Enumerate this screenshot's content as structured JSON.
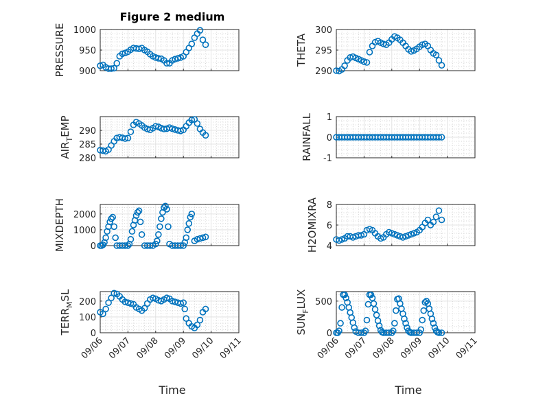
{
  "figure": {
    "title": "Figure 2 medium",
    "xlabel": "Time"
  },
  "chart_data": [
    {
      "type": "scatter",
      "title": "Figure 2 medium",
      "ylabel": "PRESSURE",
      "ylabel_sub": "",
      "ylabel_tail": "",
      "ylim": [
        900,
        1000
      ],
      "yticks": [
        900,
        950,
        1000
      ],
      "xlim": [
        "09/06",
        "09/11"
      ],
      "xticks": [
        "09/06",
        "09/07",
        "09/08",
        "09/09",
        "09/10",
        "09/11"
      ],
      "xlabel": "",
      "color": "#0072BD",
      "x": [
        6.0,
        6.1,
        6.2,
        6.3,
        6.4,
        6.5,
        6.6,
        6.7,
        6.8,
        6.9,
        7.0,
        7.1,
        7.2,
        7.3,
        7.4,
        7.5,
        7.6,
        7.7,
        7.8,
        7.9,
        8.0,
        8.1,
        8.2,
        8.3,
        8.4,
        8.5,
        8.6,
        8.7,
        8.8,
        8.9,
        9.0,
        9.1,
        9.2,
        9.3,
        9.4,
        9.5,
        9.6,
        9.7,
        9.8
      ],
      "y": [
        912,
        914,
        908,
        905,
        905,
        906,
        918,
        935,
        941,
        943,
        946,
        951,
        955,
        954,
        953,
        955,
        950,
        946,
        940,
        935,
        932,
        930,
        929,
        925,
        918,
        918,
        925,
        928,
        930,
        932,
        935,
        945,
        955,
        965,
        980,
        990,
        998,
        975,
        963
      ]
    },
    {
      "type": "scatter",
      "ylabel": "THETA",
      "ylabel_sub": "",
      "ylabel_tail": "",
      "ylim": [
        290,
        300
      ],
      "yticks": [
        290,
        295,
        300
      ],
      "xlim": [
        "09/06",
        "09/11"
      ],
      "xticks": [
        "09/06",
        "09/07",
        "09/08",
        "09/09",
        "09/10",
        "09/11"
      ],
      "xlabel": "",
      "color": "#0072BD",
      "x": [
        6.0,
        6.1,
        6.2,
        6.3,
        6.4,
        6.5,
        6.6,
        6.7,
        6.8,
        6.9,
        7.0,
        7.1,
        7.2,
        7.3,
        7.4,
        7.5,
        7.6,
        7.7,
        7.8,
        7.9,
        8.0,
        8.1,
        8.2,
        8.3,
        8.4,
        8.5,
        8.6,
        8.7,
        8.8,
        8.9,
        9.0,
        9.1,
        9.2,
        9.3,
        9.4,
        9.5,
        9.6,
        9.7,
        9.8
      ],
      "y": [
        290.0,
        289.9,
        290.3,
        291.2,
        292.5,
        293.2,
        293.4,
        293.1,
        292.8,
        292.5,
        292.2,
        292.0,
        294.5,
        296.0,
        296.9,
        297.2,
        296.8,
        296.5,
        296.3,
        296.8,
        297.6,
        298.3,
        298.0,
        297.5,
        296.8,
        296.0,
        295.2,
        294.7,
        294.9,
        295.3,
        295.8,
        296.3,
        296.5,
        296.0,
        295.0,
        294.2,
        293.8,
        292.5,
        291.3
      ]
    },
    {
      "type": "scatter",
      "ylabel": "AIR",
      "ylabel_sub": "T",
      "ylabel_tail": "EMP",
      "ylim": [
        280,
        295
      ],
      "yticks": [
        280,
        285,
        290
      ],
      "xlim": [
        "09/06",
        "09/11"
      ],
      "xticks": [
        "09/06",
        "09/07",
        "09/08",
        "09/09",
        "09/10",
        "09/11"
      ],
      "xlabel": "",
      "color": "#0072BD",
      "x": [
        6.0,
        6.1,
        6.2,
        6.3,
        6.4,
        6.5,
        6.6,
        6.7,
        6.8,
        6.9,
        7.0,
        7.1,
        7.2,
        7.3,
        7.4,
        7.5,
        7.6,
        7.7,
        7.8,
        7.9,
        8.0,
        8.1,
        8.2,
        8.3,
        8.4,
        8.5,
        8.6,
        8.7,
        8.8,
        8.9,
        9.0,
        9.1,
        9.2,
        9.3,
        9.4,
        9.5,
        9.6,
        9.7,
        9.8
      ],
      "y": [
        282.8,
        282.6,
        282.4,
        283.0,
        284.5,
        286.0,
        287.2,
        287.5,
        287.3,
        287.0,
        287.2,
        289.5,
        292.0,
        293.0,
        292.5,
        291.8,
        291.0,
        290.5,
        290.2,
        290.8,
        291.5,
        291.3,
        290.8,
        290.5,
        290.6,
        291.0,
        290.6,
        290.3,
        290.0,
        289.8,
        290.2,
        291.5,
        292.8,
        293.8,
        294.0,
        292.5,
        290.5,
        289.2,
        288.2
      ]
    },
    {
      "type": "scatter",
      "ylabel": "RAINFALL",
      "ylabel_sub": "",
      "ylabel_tail": "",
      "ylim": [
        -1,
        1
      ],
      "yticks": [
        -1,
        0,
        1
      ],
      "xlim": [
        "09/06",
        "09/11"
      ],
      "xticks": [
        "09/06",
        "09/07",
        "09/08",
        "09/09",
        "09/10",
        "09/11"
      ],
      "xlabel": "",
      "color": "#0072BD",
      "x": [
        6.0,
        6.1,
        6.2,
        6.3,
        6.4,
        6.5,
        6.6,
        6.7,
        6.8,
        6.9,
        7.0,
        7.1,
        7.2,
        7.3,
        7.4,
        7.5,
        7.6,
        7.7,
        7.8,
        7.9,
        8.0,
        8.1,
        8.2,
        8.3,
        8.4,
        8.5,
        8.6,
        8.7,
        8.8,
        8.9,
        9.0,
        9.1,
        9.2,
        9.3,
        9.4,
        9.5,
        9.6,
        9.7,
        9.8
      ],
      "y": [
        0,
        0,
        0,
        0,
        0,
        0,
        0,
        0,
        0,
        0,
        0,
        0,
        0,
        0,
        0,
        0,
        0,
        0,
        0,
        0,
        0,
        0,
        0,
        0,
        0,
        0,
        0,
        0,
        0,
        0,
        0,
        0,
        0,
        0,
        0,
        0,
        0,
        0,
        0
      ]
    },
    {
      "type": "scatter",
      "ylabel": "MIXDEPTH",
      "ylabel_sub": "",
      "ylabel_tail": "",
      "ylim": [
        0,
        2600
      ],
      "yticks": [
        0,
        1000,
        2000
      ],
      "xlim": [
        "09/06",
        "09/11"
      ],
      "xticks": [
        "09/06",
        "09/07",
        "09/08",
        "09/09",
        "09/10",
        "09/11"
      ],
      "xlabel": "",
      "color": "#0072BD",
      "x": [
        6.0,
        6.05,
        6.1,
        6.15,
        6.2,
        6.25,
        6.3,
        6.35,
        6.4,
        6.45,
        6.5,
        6.55,
        6.6,
        6.7,
        6.8,
        6.9,
        7.0,
        7.05,
        7.1,
        7.15,
        7.2,
        7.25,
        7.3,
        7.35,
        7.4,
        7.45,
        7.5,
        7.6,
        7.7,
        7.8,
        7.9,
        8.0,
        8.05,
        8.1,
        8.15,
        8.2,
        8.25,
        8.3,
        8.35,
        8.4,
        8.45,
        8.5,
        8.6,
        8.7,
        8.8,
        8.9,
        9.0,
        9.05,
        9.1,
        9.15,
        9.2,
        9.25,
        9.3,
        9.4,
        9.5,
        9.6,
        9.7,
        9.8
      ],
      "y": [
        0,
        0,
        50,
        200,
        500,
        900,
        1200,
        1500,
        1700,
        1800,
        1200,
        500,
        0,
        0,
        0,
        0,
        0,
        100,
        400,
        900,
        1300,
        1600,
        1900,
        2100,
        2200,
        1500,
        700,
        0,
        0,
        0,
        0,
        100,
        300,
        700,
        1200,
        1700,
        2100,
        2400,
        2500,
        2300,
        1200,
        100,
        0,
        0,
        0,
        0,
        0,
        200,
        500,
        1000,
        1400,
        1800,
        2000,
        300,
        400,
        450,
        500,
        550
      ]
    },
    {
      "type": "scatter",
      "ylabel": "H2OMIXRA",
      "ylabel_sub": "",
      "ylabel_tail": "",
      "ylim": [
        4,
        8
      ],
      "yticks": [
        4,
        6,
        8
      ],
      "xlim": [
        "09/06",
        "09/11"
      ],
      "xticks": [
        "09/06",
        "09/07",
        "09/08",
        "09/09",
        "09/10",
        "09/11"
      ],
      "xlabel": "",
      "color": "#0072BD",
      "x": [
        6.0,
        6.1,
        6.2,
        6.3,
        6.4,
        6.5,
        6.6,
        6.7,
        6.8,
        6.9,
        7.0,
        7.1,
        7.2,
        7.3,
        7.4,
        7.5,
        7.6,
        7.7,
        7.8,
        7.9,
        8.0,
        8.1,
        8.2,
        8.3,
        8.4,
        8.5,
        8.6,
        8.7,
        8.8,
        8.9,
        9.0,
        9.1,
        9.2,
        9.3,
        9.4,
        9.5,
        9.6,
        9.7,
        9.8
      ],
      "y": [
        4.6,
        4.5,
        4.6,
        4.7,
        4.9,
        4.9,
        4.8,
        4.9,
        5.0,
        5.0,
        5.1,
        5.5,
        5.6,
        5.5,
        5.2,
        4.9,
        4.7,
        4.8,
        5.1,
        5.3,
        5.2,
        5.1,
        5.0,
        4.9,
        4.8,
        4.9,
        5.0,
        5.1,
        5.2,
        5.3,
        5.5,
        5.8,
        6.2,
        6.5,
        6.0,
        6.3,
        6.8,
        7.4,
        6.5
      ]
    },
    {
      "type": "scatter",
      "ylabel": "TERR",
      "ylabel_sub": "M",
      "ylabel_tail": "SL",
      "ylim": [
        0,
        260
      ],
      "yticks": [
        0,
        100,
        200
      ],
      "xlim": [
        "09/06",
        "09/11"
      ],
      "xticks": [
        "09/06",
        "09/07",
        "09/08",
        "09/09",
        "09/10",
        "09/11"
      ],
      "xlabel": "Time",
      "color": "#0072BD",
      "x": [
        6.0,
        6.1,
        6.2,
        6.3,
        6.4,
        6.5,
        6.6,
        6.7,
        6.8,
        6.9,
        7.0,
        7.1,
        7.2,
        7.3,
        7.4,
        7.5,
        7.6,
        7.7,
        7.8,
        7.9,
        8.0,
        8.1,
        8.2,
        8.3,
        8.4,
        8.5,
        8.6,
        8.7,
        8.8,
        8.9,
        9.0,
        9.05,
        9.1,
        9.2,
        9.3,
        9.4,
        9.5,
        9.6,
        9.7,
        9.8
      ],
      "y": [
        130,
        120,
        150,
        190,
        220,
        250,
        245,
        230,
        210,
        195,
        190,
        185,
        180,
        160,
        150,
        140,
        155,
        185,
        210,
        220,
        215,
        205,
        200,
        210,
        220,
        215,
        200,
        195,
        190,
        185,
        190,
        150,
        90,
        60,
        40,
        30,
        50,
        80,
        130,
        150
      ]
    },
    {
      "type": "scatter",
      "ylabel": "SUN",
      "ylabel_sub": "F",
      "ylabel_tail": "LUX",
      "ylim": [
        0,
        650
      ],
      "yticks": [
        0,
        500
      ],
      "xlim": [
        "09/06",
        "09/11"
      ],
      "xticks": [
        "09/06",
        "09/07",
        "09/08",
        "09/09",
        "09/10",
        "09/11"
      ],
      "xlabel": "Time",
      "color": "#0072BD",
      "x": [
        6.0,
        6.05,
        6.1,
        6.15,
        6.2,
        6.25,
        6.3,
        6.35,
        6.4,
        6.45,
        6.5,
        6.55,
        6.6,
        6.65,
        6.7,
        6.8,
        6.9,
        7.0,
        7.05,
        7.1,
        7.15,
        7.2,
        7.25,
        7.3,
        7.35,
        7.4,
        7.45,
        7.5,
        7.55,
        7.6,
        7.65,
        7.7,
        7.8,
        7.9,
        8.0,
        8.05,
        8.1,
        8.15,
        8.2,
        8.25,
        8.3,
        8.35,
        8.4,
        8.45,
        8.5,
        8.55,
        8.6,
        8.65,
        8.7,
        8.8,
        8.9,
        9.0,
        9.05,
        9.1,
        9.15,
        9.2,
        9.25,
        9.3,
        9.35,
        9.4,
        9.45,
        9.5,
        9.55,
        9.6,
        9.65,
        9.7,
        9.8
      ],
      "y": [
        0,
        0,
        30,
        150,
        400,
        600,
        600,
        550,
        480,
        400,
        320,
        240,
        160,
        80,
        20,
        0,
        0,
        0,
        30,
        200,
        450,
        600,
        600,
        550,
        460,
        370,
        280,
        190,
        110,
        40,
        10,
        0,
        0,
        0,
        0,
        30,
        150,
        350,
        530,
        540,
        460,
        380,
        300,
        220,
        150,
        80,
        30,
        10,
        0,
        0,
        0,
        0,
        50,
        200,
        350,
        480,
        500,
        460,
        380,
        300,
        220,
        150,
        80,
        30,
        10,
        0,
        0
      ]
    }
  ]
}
